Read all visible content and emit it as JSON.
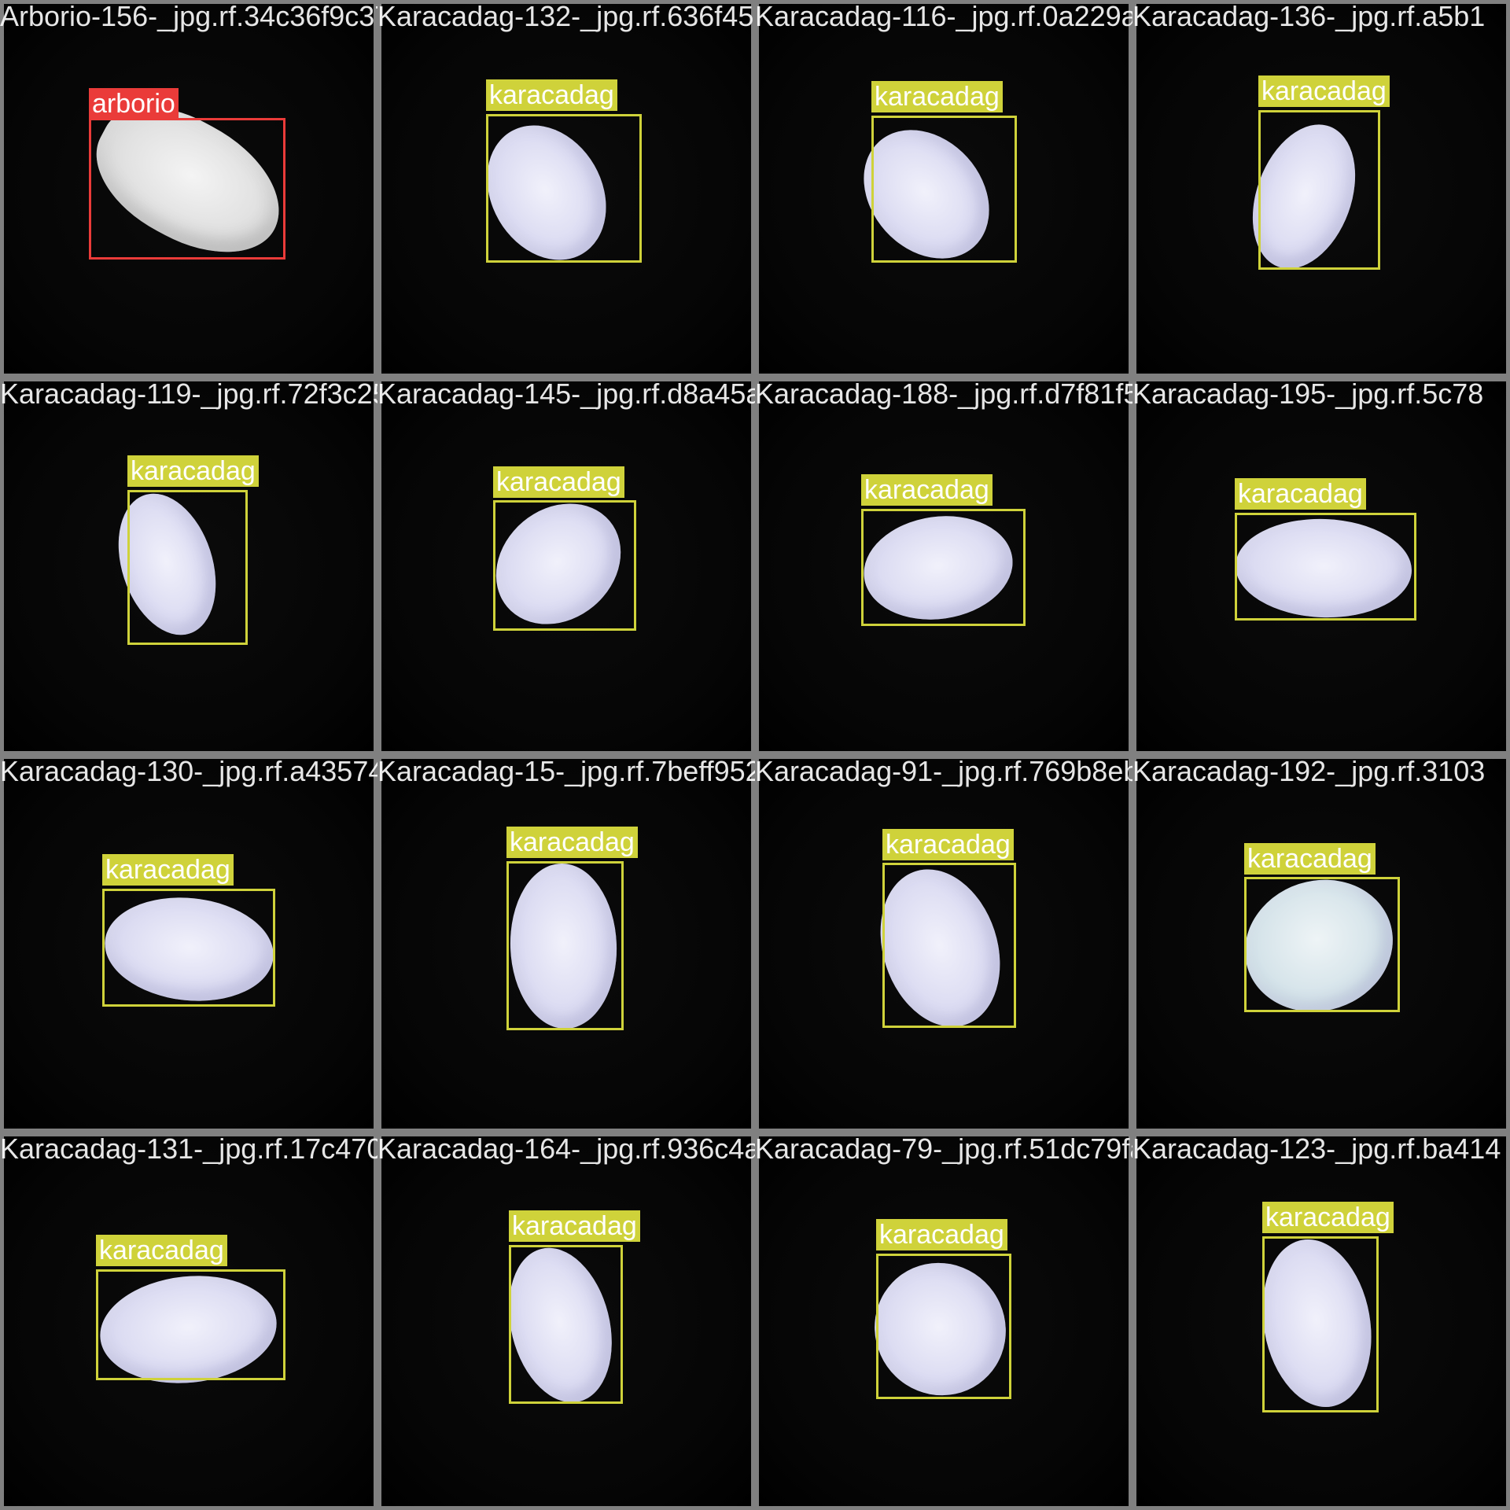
{
  "colors": {
    "background": "#8c8c8c",
    "tile_bg": "#000000",
    "arborio_class": "#ea3b39",
    "karacadag_class": "#cfd23a",
    "label_text": "#ffffff"
  },
  "tiles": [
    {
      "filename": "Arborio-156-_jpg.rf.34c36f9c377fda1803132",
      "label": "arborio"
    },
    {
      "filename": "Karacadag-132-_jpg.rf.636f4520a52803165",
      "label": "karacadag"
    },
    {
      "filename": "Karacadag-116-_jpg.rf.0a229a37ae3d05e1867",
      "label": "karacadag"
    },
    {
      "filename": "Karacadag-136-_jpg.rf.a5b1",
      "label": "karacadag"
    },
    {
      "filename": "Karacadag-119-_jpg.rf.72f3c253a1a89c2145",
      "label": "karacadag"
    },
    {
      "filename": "Karacadag-145-_jpg.rf.d8a45a17ceb43a1881",
      "label": "karacadag"
    },
    {
      "filename": "Karacadag-188-_jpg.rf.d7f81f56ca013a2f98",
      "label": "karacadag"
    },
    {
      "filename": "Karacadag-195-_jpg.rf.5c78",
      "label": "karacadag"
    },
    {
      "filename": "Karacadag-130-_jpg.rf.a435740dc0aa261325",
      "label": "karacadag"
    },
    {
      "filename": "Karacadag-15-_jpg.rf.7beff95294ec1e9840",
      "label": "karacadag"
    },
    {
      "filename": "Karacadag-91-_jpg.rf.769b8ebf4b7dd42927",
      "label": "karacadag"
    },
    {
      "filename": "Karacadag-192-_jpg.rf.3103",
      "label": "karacadag"
    },
    {
      "filename": "Karacadag-131-_jpg.rf.17c470ba65ff3508034",
      "label": "karacadag"
    },
    {
      "filename": "Karacadag-164-_jpg.rf.936c4a4a67c1e37981",
      "label": "karacadag"
    },
    {
      "filename": "Karacadag-79-_jpg.rf.51dc79fac4e77b5203b",
      "label": "karacadag"
    },
    {
      "filename": "Karacadag-123-_jpg.rf.ba414",
      "label": "karacadag"
    }
  ]
}
